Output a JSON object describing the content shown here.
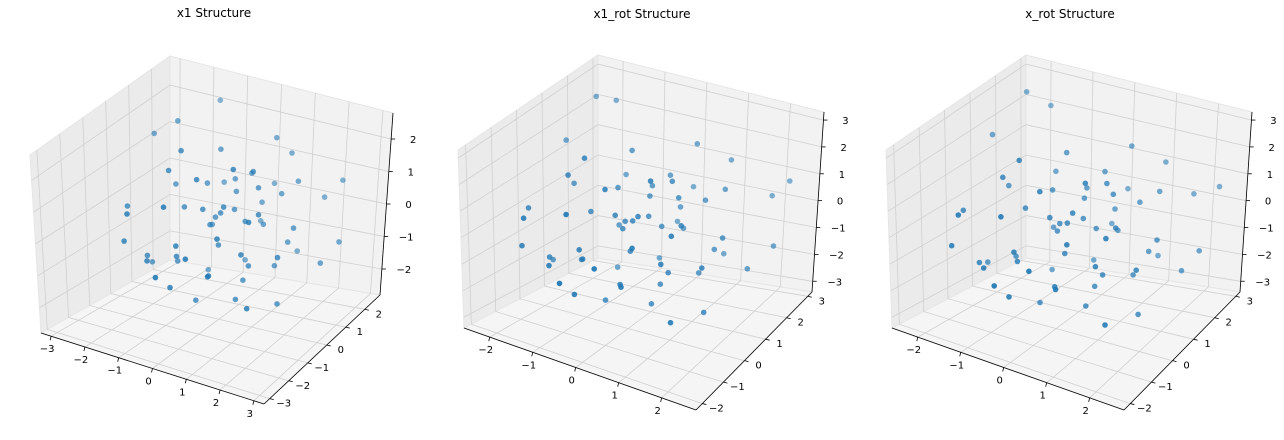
{
  "chart_data": [
    {
      "type": "scatter",
      "title": "x1 Structure",
      "xticks": [
        "−3",
        "−2",
        "−1",
        "0",
        "1",
        "2",
        "3"
      ],
      "yticks": [
        "−3",
        "−2",
        "−1",
        "0",
        "1",
        "2"
      ],
      "zticks": [
        "−2",
        "−1",
        "0",
        "1",
        "2"
      ],
      "xlim": [
        -3.3,
        3.3
      ],
      "ylim": [
        -3.3,
        2.8
      ],
      "zlim": [
        -2.8,
        2.8
      ],
      "points": [
        [
          -2.9,
          1.5,
          1.3
        ],
        [
          -2.0,
          1.2,
          2.0
        ],
        [
          -1.6,
          2.5,
          2.1
        ],
        [
          -1.0,
          1.8,
          0.2
        ],
        [
          -0.6,
          1.0,
          1.6
        ],
        [
          0.2,
          1.2,
          1.0
        ],
        [
          1.0,
          1.8,
          1.5
        ],
        [
          1.9,
          2.0,
          0.3
        ],
        [
          2.3,
          2.2,
          0.8
        ],
        [
          2.8,
          1.3,
          -0.5
        ],
        [
          -2.2,
          -1.0,
          -0.6
        ],
        [
          -1.9,
          -0.4,
          -1.2
        ],
        [
          -1.5,
          0.4,
          -1.6
        ],
        [
          -1.4,
          -1.2,
          -0.9
        ],
        [
          -1.1,
          0.1,
          0.2
        ],
        [
          -0.9,
          -0.6,
          -0.9
        ],
        [
          -0.8,
          0.7,
          0.7
        ],
        [
          -0.6,
          -1.4,
          -1.4
        ],
        [
          -0.4,
          0.2,
          -0.2
        ],
        [
          -0.3,
          -0.3,
          0.5
        ],
        [
          -0.1,
          0.9,
          0.9
        ],
        [
          0.1,
          -0.2,
          -0.5
        ],
        [
          0.2,
          0.4,
          0.3
        ],
        [
          0.3,
          -1.0,
          -1.0
        ],
        [
          0.4,
          1.4,
          0.1
        ],
        [
          0.5,
          -0.6,
          0.9
        ],
        [
          0.6,
          0.2,
          -1.6
        ],
        [
          0.7,
          1.0,
          -0.3
        ],
        [
          0.8,
          -1.4,
          0.4
        ],
        [
          0.9,
          0.4,
          1.1
        ],
        [
          1.0,
          -0.2,
          -0.9
        ],
        [
          1.1,
          1.2,
          0.6
        ],
        [
          1.2,
          -0.9,
          -0.2
        ],
        [
          1.3,
          0.6,
          -1.2
        ],
        [
          1.4,
          -0.4,
          0.8
        ],
        [
          1.5,
          0.9,
          -0.6
        ],
        [
          1.6,
          -1.2,
          1.0
        ],
        [
          1.7,
          0.1,
          -2.0
        ],
        [
          -0.2,
          1.6,
          -1.8
        ],
        [
          -0.5,
          -1.8,
          1.2
        ],
        [
          0.0,
          2.0,
          -0.8
        ],
        [
          0.3,
          -2.1,
          0.0
        ],
        [
          -1.2,
          1.4,
          -2.2
        ],
        [
          0.6,
          1.7,
          1.9
        ],
        [
          1.8,
          -1.6,
          -1.3
        ],
        [
          -1.7,
          -1.6,
          0.6
        ],
        [
          -0.7,
          0.0,
          -2.4
        ],
        [
          0.9,
          -0.8,
          2.2
        ],
        [
          1.9,
          0.5,
          0.1
        ],
        [
          -2.4,
          0.6,
          -1.9
        ],
        [
          -0.1,
          -0.9,
          1.7
        ],
        [
          0.4,
          0.6,
          -0.1
        ],
        [
          -0.3,
          0.3,
          0.0
        ],
        [
          0.1,
          -0.1,
          0.4
        ],
        [
          -0.9,
          1.1,
          -0.7
        ],
        [
          1.2,
          1.9,
          -1.4
        ],
        [
          -1.3,
          -0.3,
          1.4
        ],
        [
          0.7,
          -1.7,
          -0.6
        ],
        [
          2.1,
          -0.6,
          -0.2
        ],
        [
          -0.6,
          -1.1,
          -0.3
        ],
        [
          0.0,
          0.8,
          0.6
        ],
        [
          0.5,
          0.0,
          -2.1
        ],
        [
          -1.8,
          0.8,
          0.4
        ],
        [
          1.4,
          1.5,
          0.9
        ],
        [
          -0.4,
          -2.4,
          -0.6
        ],
        [
          0.2,
          2.3,
          0.2
        ],
        [
          2.5,
          0.9,
          -1.0
        ],
        [
          -2.6,
          -0.2,
          0.0
        ],
        [
          0.8,
          0.3,
          1.6
        ],
        [
          -0.8,
          -0.5,
          2.2
        ]
      ]
    },
    {
      "type": "scatter",
      "title": "x1_rot Structure",
      "xticks": [
        "−2",
        "−1",
        "0",
        "1",
        "2"
      ],
      "yticks": [
        "−2",
        "−1",
        "0",
        "1",
        "2",
        "3"
      ],
      "zticks": [
        "−3",
        "−2",
        "−1",
        "0",
        "1",
        "2",
        "3"
      ],
      "xlim": [
        -2.6,
        2.8
      ],
      "ylim": [
        -2.3,
        3.2
      ],
      "zlim": [
        -3.4,
        3.3
      ],
      "points": [
        [
          -2.4,
          1.6,
          1.4
        ],
        [
          -2.1,
          2.3,
          2.6
        ],
        [
          -1.8,
          2.6,
          2.4
        ],
        [
          -1.2,
          2.0,
          0.4
        ],
        [
          -0.6,
          1.2,
          1.9
        ],
        [
          0.2,
          1.4,
          1.2
        ],
        [
          1.2,
          2.2,
          1.6
        ],
        [
          2.1,
          2.4,
          0.5
        ],
        [
          2.4,
          2.6,
          1.0
        ],
        [
          2.6,
          1.6,
          -0.6
        ],
        [
          -2.0,
          -0.9,
          -0.8
        ],
        [
          -1.7,
          -0.3,
          -1.4
        ],
        [
          -1.4,
          0.5,
          -1.8
        ],
        [
          -1.2,
          -1.2,
          -1.0
        ],
        [
          -1.0,
          0.2,
          0.2
        ],
        [
          -0.8,
          -0.5,
          -1.0
        ],
        [
          -0.7,
          0.8,
          0.8
        ],
        [
          -0.5,
          -1.4,
          -1.6
        ],
        [
          -0.3,
          0.3,
          -0.2
        ],
        [
          -0.2,
          -0.2,
          0.6
        ],
        [
          0.0,
          1.0,
          1.0
        ],
        [
          0.1,
          -0.1,
          -0.6
        ],
        [
          0.2,
          0.5,
          0.3
        ],
        [
          0.3,
          -0.9,
          -1.2
        ],
        [
          0.4,
          1.5,
          0.1
        ],
        [
          0.5,
          -0.5,
          1.0
        ],
        [
          0.6,
          0.3,
          -1.8
        ],
        [
          0.7,
          1.1,
          -0.3
        ],
        [
          0.8,
          -1.3,
          0.5
        ],
        [
          0.9,
          0.5,
          1.2
        ],
        [
          1.0,
          -0.1,
          -1.0
        ],
        [
          1.1,
          1.3,
          0.7
        ],
        [
          1.2,
          -0.8,
          -0.2
        ],
        [
          1.3,
          0.7,
          -1.4
        ],
        [
          1.4,
          -0.3,
          0.9
        ],
        [
          1.5,
          1.0,
          -0.7
        ],
        [
          1.6,
          -1.1,
          1.1
        ],
        [
          1.7,
          0.2,
          -2.3
        ],
        [
          -0.2,
          1.7,
          -2.0
        ],
        [
          -0.5,
          -1.7,
          1.4
        ],
        [
          0.0,
          2.1,
          -0.9
        ],
        [
          0.3,
          -2.0,
          0.0
        ],
        [
          -1.1,
          1.5,
          -2.5
        ],
        [
          0.6,
          1.8,
          2.2
        ],
        [
          1.8,
          -1.5,
          -1.5
        ],
        [
          -1.6,
          -1.5,
          0.7
        ],
        [
          -0.6,
          0.1,
          -2.7
        ],
        [
          0.9,
          -0.7,
          2.5
        ],
        [
          1.9,
          0.6,
          0.1
        ],
        [
          -2.2,
          0.7,
          -2.2
        ],
        [
          -0.1,
          -0.8,
          1.9
        ],
        [
          0.4,
          0.7,
          -0.1
        ],
        [
          -0.3,
          0.4,
          0.0
        ],
        [
          0.1,
          0.0,
          0.4
        ],
        [
          -0.9,
          1.2,
          -0.8
        ],
        [
          1.2,
          2.0,
          -1.6
        ],
        [
          -1.3,
          -0.2,
          1.6
        ],
        [
          0.7,
          -1.6,
          -0.7
        ],
        [
          2.0,
          -0.5,
          -0.2
        ],
        [
          -0.6,
          -1.0,
          -0.3
        ],
        [
          0.0,
          0.9,
          0.7
        ],
        [
          0.5,
          0.1,
          -2.4
        ],
        [
          -1.8,
          0.9,
          0.5
        ],
        [
          1.4,
          1.6,
          1.0
        ],
        [
          -0.4,
          -2.2,
          -0.7
        ],
        [
          0.2,
          2.4,
          0.2
        ],
        [
          2.3,
          1.0,
          -1.1
        ],
        [
          -2.3,
          -0.1,
          0.0
        ],
        [
          0.8,
          0.4,
          1.8
        ],
        [
          -0.8,
          -0.4,
          2.5
        ]
      ]
    },
    {
      "type": "scatter",
      "title": "x_rot Structure",
      "xticks": [
        "−2",
        "−1",
        "0",
        "1",
        "2"
      ],
      "yticks": [
        "−2",
        "−1",
        "0",
        "1",
        "2",
        "3"
      ],
      "zticks": [
        "−3",
        "−2",
        "−1",
        "0",
        "1",
        "2",
        "3"
      ],
      "xlim": [
        -2.6,
        2.8
      ],
      "ylim": [
        -2.3,
        3.2
      ],
      "zlim": [
        -3.4,
        3.3
      ],
      "points": [
        [
          -2.5,
          1.7,
          1.5
        ],
        [
          -2.1,
          2.4,
          2.7
        ],
        [
          -1.7,
          2.7,
          2.2
        ],
        [
          -1.1,
          1.9,
          0.6
        ],
        [
          -0.5,
          1.3,
          1.8
        ],
        [
          0.3,
          1.5,
          1.3
        ],
        [
          1.3,
          2.3,
          1.5
        ],
        [
          2.0,
          2.3,
          0.6
        ],
        [
          2.5,
          2.5,
          0.9
        ],
        [
          2.6,
          1.5,
          -0.7
        ],
        [
          -1.9,
          -1.0,
          -0.7
        ],
        [
          -1.6,
          -0.4,
          -1.5
        ],
        [
          -1.3,
          0.6,
          -1.7
        ],
        [
          -1.1,
          -1.1,
          -1.1
        ],
        [
          -0.9,
          0.3,
          0.3
        ],
        [
          -0.7,
          -0.4,
          -1.1
        ],
        [
          -0.6,
          0.9,
          0.7
        ],
        [
          -0.4,
          -1.3,
          -1.7
        ],
        [
          -0.2,
          0.4,
          -0.3
        ],
        [
          -0.1,
          -0.1,
          0.5
        ],
        [
          0.1,
          1.1,
          0.9
        ],
        [
          0.2,
          0.0,
          -0.7
        ],
        [
          0.3,
          0.6,
          0.2
        ],
        [
          0.4,
          -0.8,
          -1.3
        ],
        [
          0.5,
          1.6,
          0.0
        ],
        [
          0.6,
          -0.4,
          1.1
        ],
        [
          0.7,
          0.4,
          -1.9
        ],
        [
          0.8,
          1.2,
          -0.4
        ],
        [
          0.9,
          -1.2,
          0.6
        ],
        [
          1.0,
          0.6,
          1.3
        ],
        [
          1.1,
          0.0,
          -1.1
        ],
        [
          1.2,
          1.4,
          0.6
        ],
        [
          1.3,
          -0.7,
          -0.3
        ],
        [
          1.4,
          0.8,
          -1.5
        ],
        [
          1.5,
          -0.2,
          0.8
        ],
        [
          1.6,
          1.1,
          -0.8
        ],
        [
          1.7,
          -1.0,
          1.0
        ],
        [
          1.8,
          0.3,
          -2.4
        ],
        [
          -0.1,
          1.8,
          -2.1
        ],
        [
          -0.4,
          -1.6,
          1.3
        ],
        [
          0.1,
          2.2,
          -1.0
        ],
        [
          0.4,
          -1.9,
          -0.1
        ],
        [
          -1.0,
          1.6,
          -2.6
        ],
        [
          0.7,
          1.9,
          2.1
        ],
        [
          1.9,
          -1.4,
          -1.6
        ],
        [
          -1.5,
          -1.4,
          0.8
        ],
        [
          -0.5,
          0.2,
          -2.8
        ],
        [
          1.0,
          -0.6,
          2.4
        ],
        [
          2.0,
          0.7,
          0.0
        ],
        [
          -2.1,
          0.8,
          -2.3
        ],
        [
          0.0,
          -0.7,
          1.8
        ],
        [
          0.5,
          0.8,
          -0.2
        ],
        [
          -0.2,
          0.5,
          -0.1
        ],
        [
          0.2,
          0.1,
          0.3
        ],
        [
          -0.8,
          1.3,
          -0.9
        ],
        [
          1.3,
          2.1,
          -1.7
        ],
        [
          -1.2,
          -0.1,
          1.5
        ],
        [
          0.8,
          -1.5,
          -0.8
        ],
        [
          2.1,
          -0.4,
          -0.3
        ],
        [
          -0.5,
          -0.9,
          -0.4
        ],
        [
          0.1,
          1.0,
          0.6
        ],
        [
          0.6,
          0.2,
          -2.5
        ],
        [
          -1.7,
          1.0,
          0.4
        ],
        [
          1.5,
          1.7,
          0.9
        ],
        [
          -0.3,
          -2.1,
          -0.8
        ],
        [
          0.3,
          2.5,
          0.1
        ],
        [
          2.4,
          1.1,
          -1.2
        ],
        [
          -2.2,
          0.0,
          -0.1
        ],
        [
          0.9,
          0.5,
          1.7
        ],
        [
          -0.7,
          -0.3,
          2.4
        ]
      ]
    }
  ]
}
